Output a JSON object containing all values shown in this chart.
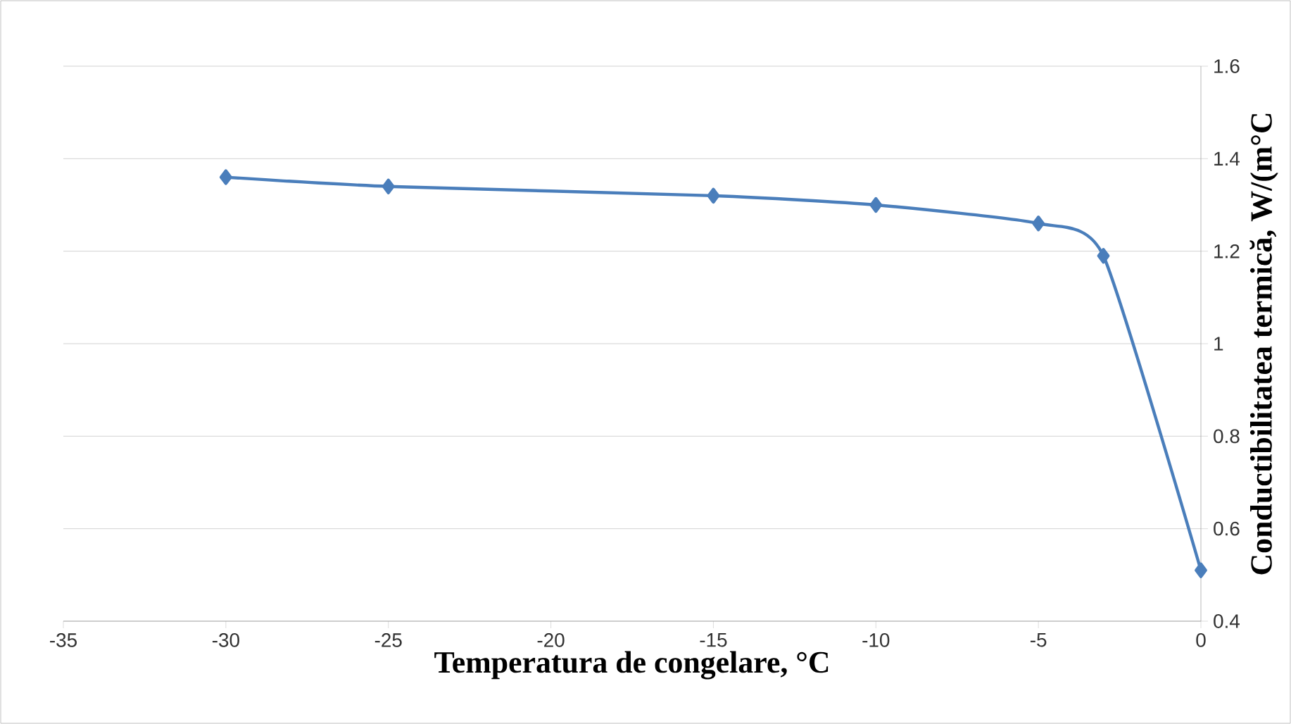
{
  "chart_data": {
    "type": "line",
    "xlabel": "Temperatura de congelare, °C",
    "ylabel": "Conductibilitatea termică, W/(m°C",
    "x": [
      -30,
      -25,
      -15,
      -10,
      -5,
      -3,
      0
    ],
    "series": [
      {
        "color": "#4a7ebb",
        "values": [
          1.36,
          1.34,
          1.32,
          1.3,
          1.26,
          1.19,
          0.51
        ]
      }
    ],
    "xlim": [
      -35,
      0
    ],
    "xticks": [
      -35,
      -30,
      -25,
      -20,
      -15,
      -10,
      -5,
      0
    ],
    "ylim": [
      0.4,
      1.6
    ],
    "yticks": [
      0.4,
      0.6,
      0.8,
      1,
      1.2,
      1.4,
      1.6
    ],
    "grid": "y",
    "marker": "diamond",
    "line_style": "solid"
  }
}
